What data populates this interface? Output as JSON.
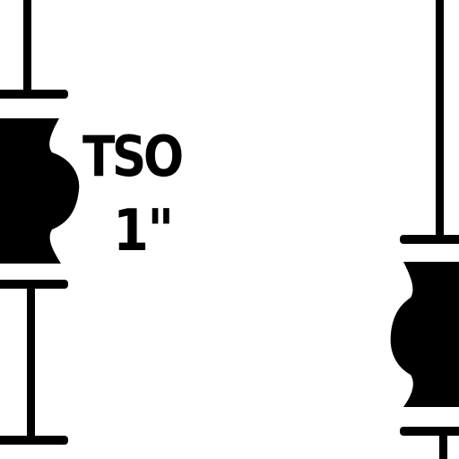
{
  "fitting": {
    "type_label": "TSO",
    "size_label": "1\""
  },
  "colors": {
    "ink": "#000000",
    "background": "#ffffff"
  }
}
